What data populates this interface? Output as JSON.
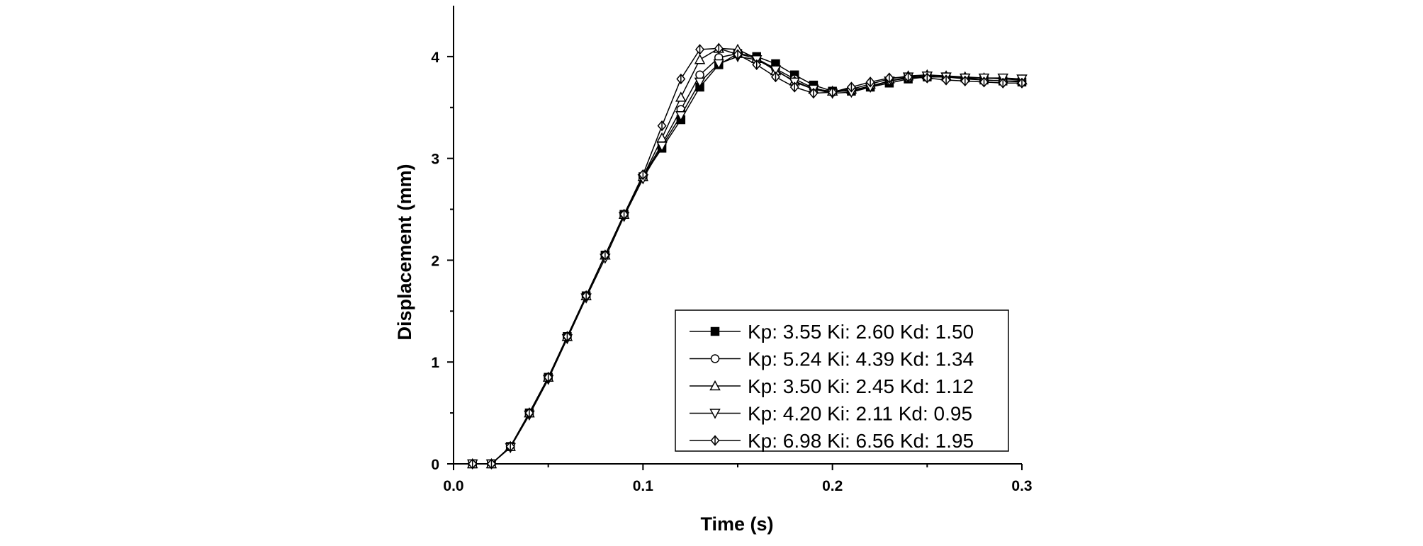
{
  "chart_data": {
    "type": "line",
    "title": "",
    "xlabel": "Time (s)",
    "ylabel": "Displacement (mm)",
    "xlim": [
      0,
      0.3
    ],
    "ylim": [
      0,
      4.5
    ],
    "x_ticks": [
      "0.0",
      "0.1",
      "0.2",
      "0.3"
    ],
    "y_ticks": [
      "0",
      "1",
      "2",
      "3",
      "4"
    ],
    "grid": false,
    "legend_position": "bottom-right",
    "series": [
      {
        "name": "Kp: 3.55 Ki: 2.60 Kd: 1.50",
        "marker": "square-filled",
        "x": [
          0,
          0.01,
          0.02,
          0.03,
          0.04,
          0.05,
          0.06,
          0.07,
          0.08,
          0.09,
          0.1,
          0.11,
          0.12,
          0.13,
          0.14,
          0.15,
          0.16,
          0.17,
          0.18,
          0.19,
          0.2,
          0.21,
          0.22,
          0.23,
          0.24,
          0.25,
          0.26,
          0.27,
          0.28,
          0.29,
          0.3
        ],
        "y": [
          0,
          0,
          0,
          0.17,
          0.5,
          0.85,
          1.25,
          1.65,
          2.05,
          2.45,
          2.82,
          3.1,
          3.38,
          3.7,
          3.92,
          4.03,
          4.0,
          3.93,
          3.82,
          3.72,
          3.66,
          3.66,
          3.7,
          3.74,
          3.78,
          3.8,
          3.8,
          3.79,
          3.77,
          3.76,
          3.75
        ]
      },
      {
        "name": "Kp: 5.24 Ki: 4.39 Kd: 1.34",
        "marker": "circle-open",
        "x": [
          0,
          0.01,
          0.02,
          0.03,
          0.04,
          0.05,
          0.06,
          0.07,
          0.08,
          0.09,
          0.1,
          0.11,
          0.12,
          0.13,
          0.14,
          0.15,
          0.16,
          0.17,
          0.18,
          0.19,
          0.2,
          0.21,
          0.22,
          0.23,
          0.24,
          0.25,
          0.26,
          0.27,
          0.28,
          0.29,
          0.3
        ],
        "y": [
          0,
          0,
          0,
          0.17,
          0.5,
          0.85,
          1.25,
          1.65,
          2.05,
          2.45,
          2.82,
          3.14,
          3.48,
          3.82,
          3.99,
          4.03,
          3.98,
          3.88,
          3.78,
          3.69,
          3.65,
          3.67,
          3.71,
          3.76,
          3.79,
          3.8,
          3.8,
          3.78,
          3.77,
          3.76,
          3.76
        ]
      },
      {
        "name": "Kp: 3.50 Ki: 2.45 Kd: 1.12",
        "marker": "triangle-up-open",
        "x": [
          0,
          0.01,
          0.02,
          0.03,
          0.04,
          0.05,
          0.06,
          0.07,
          0.08,
          0.09,
          0.1,
          0.11,
          0.12,
          0.13,
          0.14,
          0.15,
          0.16,
          0.17,
          0.18,
          0.19,
          0.2,
          0.21,
          0.22,
          0.23,
          0.24,
          0.25,
          0.26,
          0.27,
          0.28,
          0.29,
          0.3
        ],
        "y": [
          0,
          0,
          0,
          0.17,
          0.5,
          0.85,
          1.25,
          1.65,
          2.05,
          2.45,
          2.82,
          3.2,
          3.6,
          3.97,
          4.08,
          4.07,
          3.98,
          3.86,
          3.76,
          3.68,
          3.66,
          3.68,
          3.73,
          3.78,
          3.81,
          3.82,
          3.81,
          3.8,
          3.79,
          3.78,
          3.77
        ]
      },
      {
        "name": "Kp: 4.20 Ki: 2.11 Kd: 0.95",
        "marker": "triangle-down-open",
        "x": [
          0,
          0.01,
          0.02,
          0.03,
          0.04,
          0.05,
          0.06,
          0.07,
          0.08,
          0.09,
          0.1,
          0.11,
          0.12,
          0.13,
          0.14,
          0.15,
          0.16,
          0.17,
          0.18,
          0.19,
          0.2,
          0.21,
          0.22,
          0.23,
          0.24,
          0.25,
          0.26,
          0.27,
          0.28,
          0.29,
          0.3
        ],
        "y": [
          0,
          0,
          0,
          0.16,
          0.48,
          0.83,
          1.23,
          1.63,
          2.02,
          2.43,
          2.8,
          3.12,
          3.42,
          3.75,
          3.93,
          4.0,
          3.97,
          3.87,
          3.75,
          3.68,
          3.64,
          3.65,
          3.7,
          3.76,
          3.8,
          3.81,
          3.8,
          3.79,
          3.79,
          3.79,
          3.78
        ]
      },
      {
        "name": "Kp: 6.98 Ki: 6.56 Kd: 1.95",
        "marker": "diamond-cross",
        "x": [
          0,
          0.01,
          0.02,
          0.03,
          0.04,
          0.05,
          0.06,
          0.07,
          0.08,
          0.09,
          0.1,
          0.11,
          0.12,
          0.13,
          0.14,
          0.15,
          0.16,
          0.17,
          0.18,
          0.19,
          0.2,
          0.21,
          0.22,
          0.23,
          0.24,
          0.25,
          0.26,
          0.27,
          0.28,
          0.29,
          0.3
        ],
        "y": [
          0,
          0,
          0,
          0.17,
          0.5,
          0.85,
          1.25,
          1.65,
          2.05,
          2.45,
          2.84,
          3.32,
          3.78,
          4.07,
          4.08,
          4.02,
          3.92,
          3.8,
          3.7,
          3.64,
          3.65,
          3.7,
          3.75,
          3.79,
          3.8,
          3.79,
          3.77,
          3.76,
          3.75,
          3.74,
          3.74
        ]
      }
    ]
  }
}
